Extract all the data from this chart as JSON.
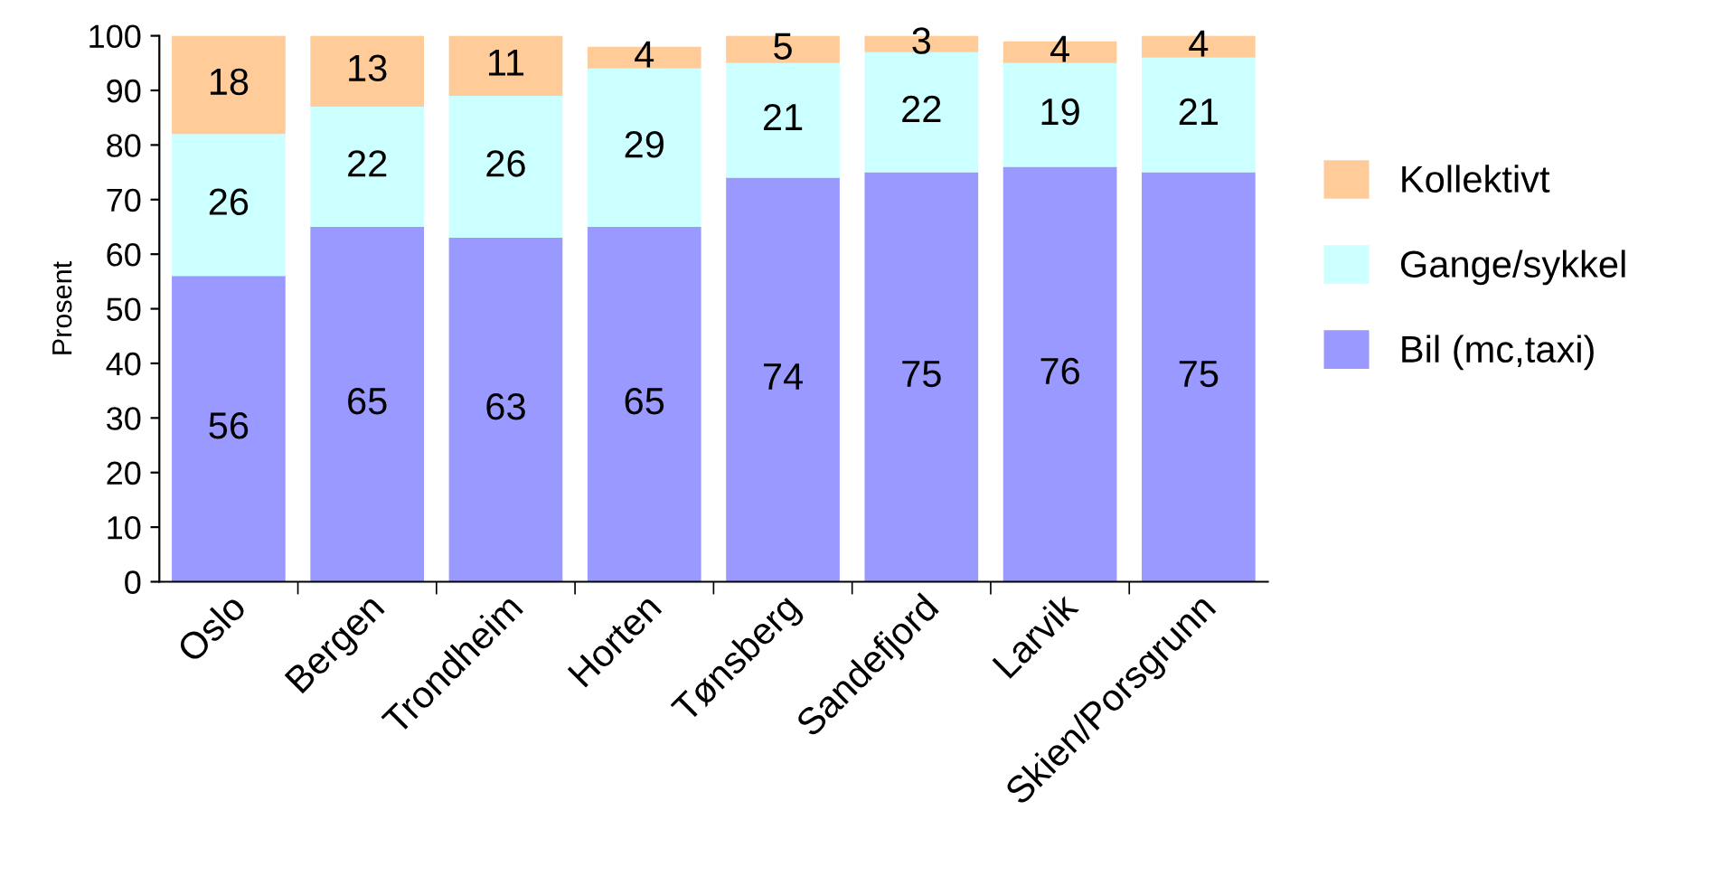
{
  "chart_data": {
    "type": "bar",
    "stacked": true,
    "ylabel": "Prosent",
    "categories": [
      "Oslo",
      "Bergen",
      "Trondheim",
      "Horten",
      "Tønsberg",
      "Sandefjord",
      "Larvik",
      "Skien/Porsgrunn"
    ],
    "series": [
      {
        "name": "Bil (mc,taxi)",
        "color": "#9999ff",
        "values": [
          56,
          65,
          63,
          65,
          74,
          75,
          76,
          75
        ]
      },
      {
        "name": "Gange/sykkel",
        "color": "#ccffff",
        "values": [
          26,
          22,
          26,
          29,
          21,
          22,
          19,
          21
        ]
      },
      {
        "name": "Kollektivt",
        "color": "#ffcc99",
        "values": [
          18,
          13,
          11,
          4,
          5,
          3,
          4,
          4
        ]
      }
    ],
    "ylim": [
      0,
      100
    ],
    "yticks": [
      0,
      10,
      20,
      30,
      40,
      50,
      60,
      70,
      80,
      90,
      100
    ],
    "data_labels": true,
    "legend": "right",
    "grid": false
  }
}
